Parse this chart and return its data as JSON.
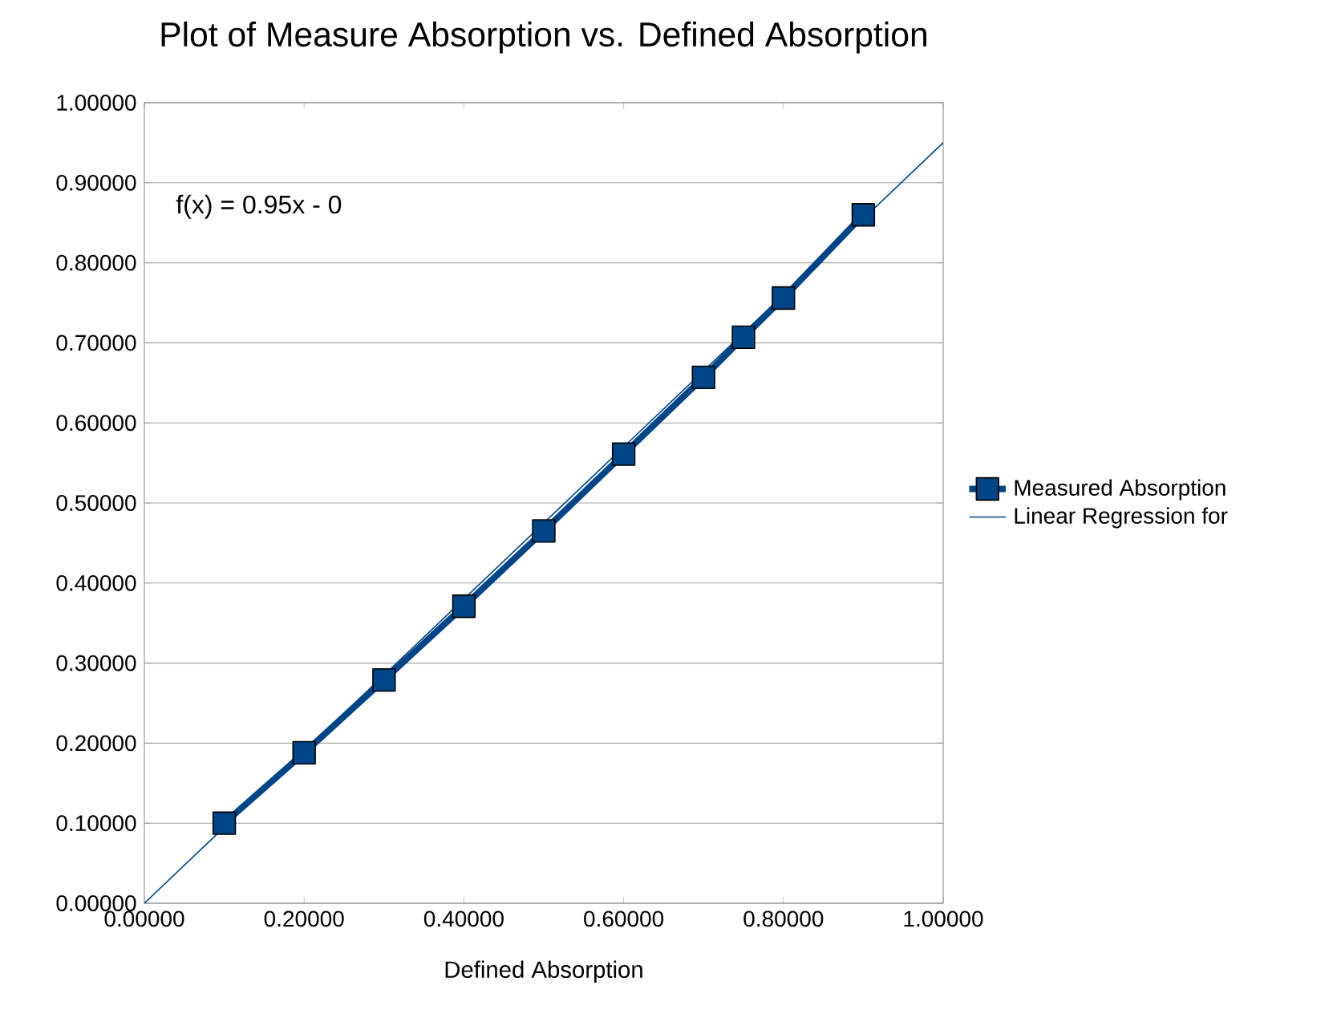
{
  "chart_data": {
    "type": "line",
    "title": "Plot of Measure Absorption vs. Defined Absorption",
    "xlabel": "Defined Absorption",
    "annotations": [
      "f(x) = 0.95x - 0"
    ],
    "xlim": [
      0,
      1
    ],
    "ylim": [
      0,
      1
    ],
    "xticks": [
      {
        "value": 0,
        "label": "0.00000"
      },
      {
        "value": 0.2,
        "label": "0.20000"
      },
      {
        "value": 0.4,
        "label": "0.40000"
      },
      {
        "value": 0.6,
        "label": "0.60000"
      },
      {
        "value": 0.8,
        "label": "0.80000"
      },
      {
        "value": 1,
        "label": "1.00000"
      }
    ],
    "yticks": [
      {
        "value": 0,
        "label": "0.00000"
      },
      {
        "value": 0.1,
        "label": "0.10000"
      },
      {
        "value": 0.2,
        "label": "0.20000"
      },
      {
        "value": 0.3,
        "label": "0.30000"
      },
      {
        "value": 0.4,
        "label": "0.40000"
      },
      {
        "value": 0.5,
        "label": "0.50000"
      },
      {
        "value": 0.6,
        "label": "0.60000"
      },
      {
        "value": 0.7,
        "label": "0.70000"
      },
      {
        "value": 0.8,
        "label": "0.80000"
      },
      {
        "value": 0.9,
        "label": "0.90000"
      },
      {
        "value": 1,
        "label": "1.00000"
      }
    ],
    "grid": "y",
    "legend": "right",
    "series": [
      {
        "name": "Measured Absorption",
        "color": "#004586",
        "marker": "square",
        "x": [
          0.1,
          0.2,
          0.3,
          0.4,
          0.5,
          0.6,
          0.7,
          0.75,
          0.8,
          0.9
        ],
        "values": [
          0.1,
          0.188,
          0.279,
          0.371,
          0.465,
          0.561,
          0.657,
          0.707,
          0.756,
          0.86
        ]
      },
      {
        "name": "Linear Regression for",
        "color": "#004586",
        "marker": "none",
        "x": [
          0,
          1
        ],
        "values": [
          0,
          0.95
        ]
      }
    ]
  }
}
